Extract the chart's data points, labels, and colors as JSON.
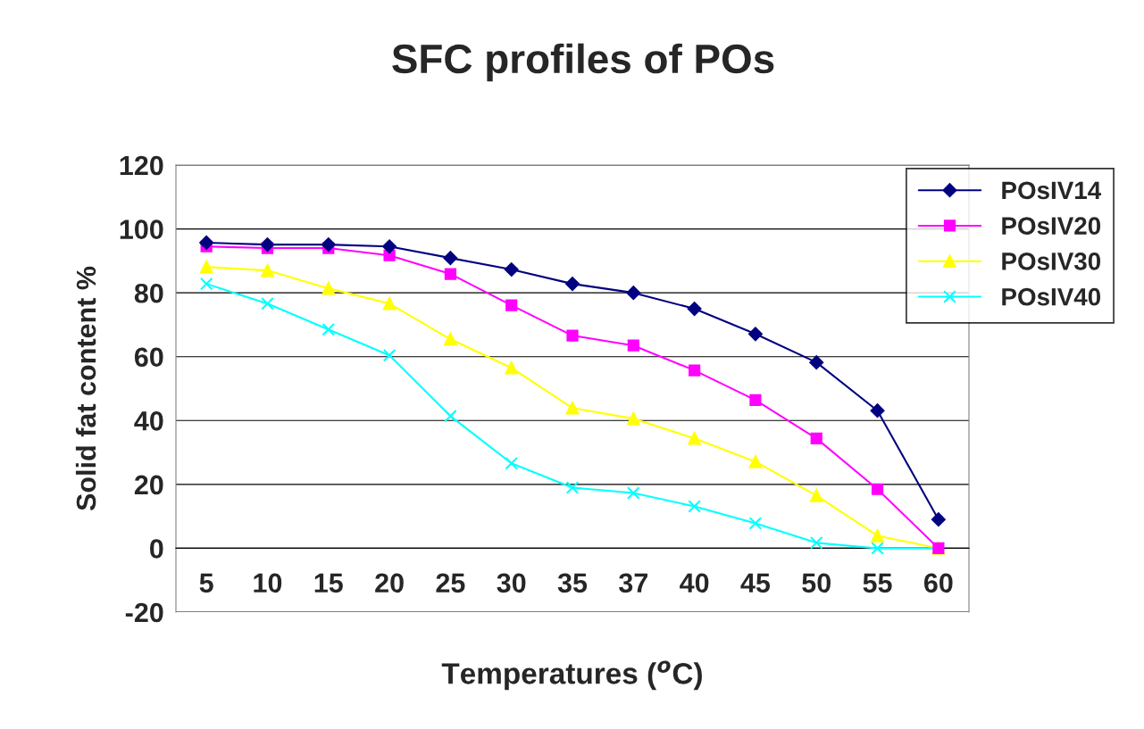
{
  "chart_data": {
    "type": "line",
    "title": "SFC profiles of POs",
    "xlabel": "Temperatures ($^{o}$C)",
    "ylabel": "Solid fat content %",
    "categories": [
      "5",
      "10",
      "15",
      "20",
      "25",
      "30",
      "35",
      "37",
      "40",
      "45",
      "50",
      "55",
      "60"
    ],
    "series": [
      {
        "name": "POsIV14",
        "color": "#000080",
        "marker": "diamond",
        "values": [
          95.7,
          95.1,
          95.1,
          94.5,
          90.9,
          87.3,
          82.8,
          80,
          75,
          67.1,
          58.2,
          43.1,
          9
        ]
      },
      {
        "name": "POsIV20",
        "color": "#ff00ff",
        "marker": "square",
        "values": [
          94.5,
          94,
          94,
          91.7,
          85.9,
          76.1,
          66.6,
          63.5,
          55.7,
          46.4,
          34.4,
          18.5,
          0
        ]
      },
      {
        "name": "POsIV30",
        "color": "#ffff00",
        "marker": "triangle",
        "values": [
          88.1,
          87,
          81.4,
          76.6,
          65.5,
          56.5,
          43.9,
          40.6,
          34.4,
          27.1,
          16.5,
          3.9,
          0
        ]
      },
      {
        "name": "POsIV40",
        "color": "#00ffff",
        "marker": "cross",
        "values": [
          82.8,
          76.6,
          68.5,
          60.4,
          41.4,
          26.6,
          19,
          17.3,
          13.1,
          7.8,
          1.7,
          0,
          0
        ]
      }
    ],
    "ylim": [
      -20,
      120
    ],
    "yticks": [
      -20,
      0,
      20,
      40,
      60,
      80,
      100,
      120
    ],
    "grid": "y",
    "legend": "top right"
  }
}
